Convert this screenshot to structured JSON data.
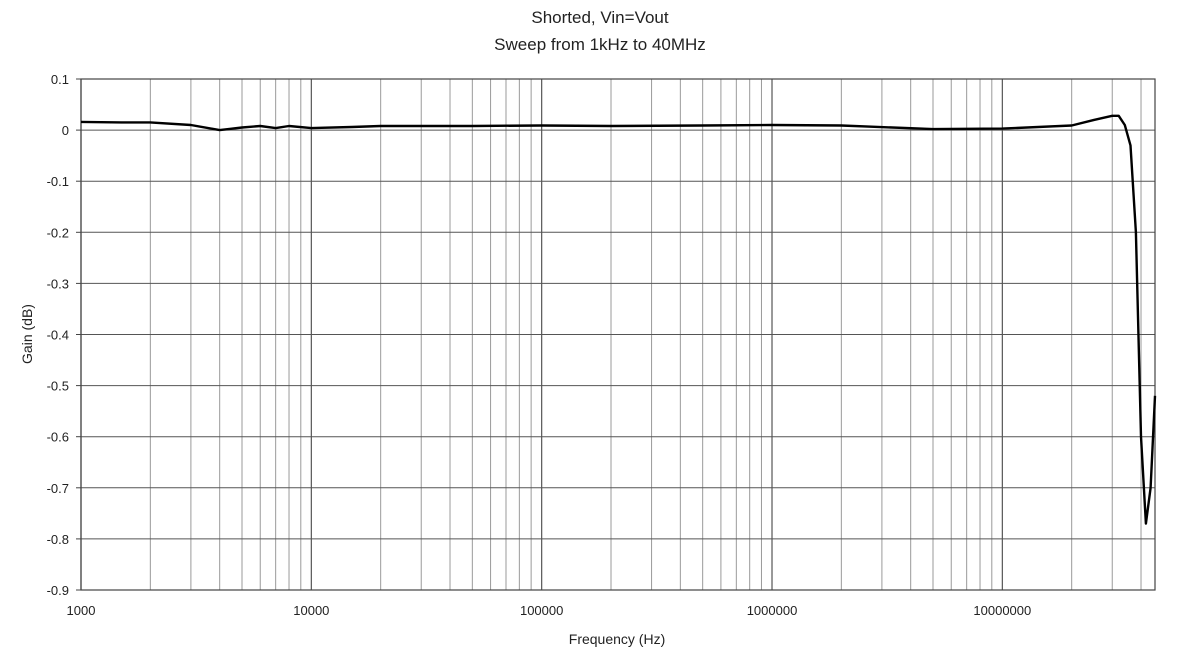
{
  "chart_data": {
    "type": "line",
    "title": "Shorted,  Vin=Vout",
    "subtitle": "Sweep from  1kHz to 40MHz",
    "xlabel": "Frequency (Hz)",
    "ylabel": "Gain (dB)",
    "x_scale": "log",
    "xlim": [
      1000,
      46000000
    ],
    "ylim": [
      -0.9,
      0.1
    ],
    "grid": true,
    "x_tick_labels": [
      "1000",
      "10000",
      "100000",
      "1000000",
      "10000000"
    ],
    "y_tick_labels": [
      "0.1",
      "0",
      "-0.1",
      "-0.2",
      "-0.3",
      "-0.4",
      "-0.5",
      "-0.6",
      "-0.7",
      "-0.8",
      "-0.9"
    ],
    "series": [
      {
        "color": "#000000",
        "x": [
          1000,
          1500,
          2000,
          3000,
          4000,
          5000,
          6000,
          7000,
          8000,
          10000,
          15000,
          20000,
          30000,
          50000,
          100000,
          200000,
          500000,
          1000000,
          2000000,
          5000000,
          10000000,
          20000000,
          25000000,
          30000000,
          32000000,
          34000000,
          36000000,
          38000000,
          40000000,
          42000000,
          44000000,
          46000000
        ],
        "y": [
          0.016,
          0.015,
          0.015,
          0.01,
          0.0,
          0.005,
          0.008,
          0.004,
          0.008,
          0.004,
          0.006,
          0.008,
          0.008,
          0.008,
          0.009,
          0.008,
          0.009,
          0.01,
          0.009,
          0.002,
          0.003,
          0.009,
          0.02,
          0.028,
          0.028,
          0.01,
          -0.03,
          -0.2,
          -0.6,
          -0.77,
          -0.7,
          -0.52
        ]
      }
    ]
  }
}
